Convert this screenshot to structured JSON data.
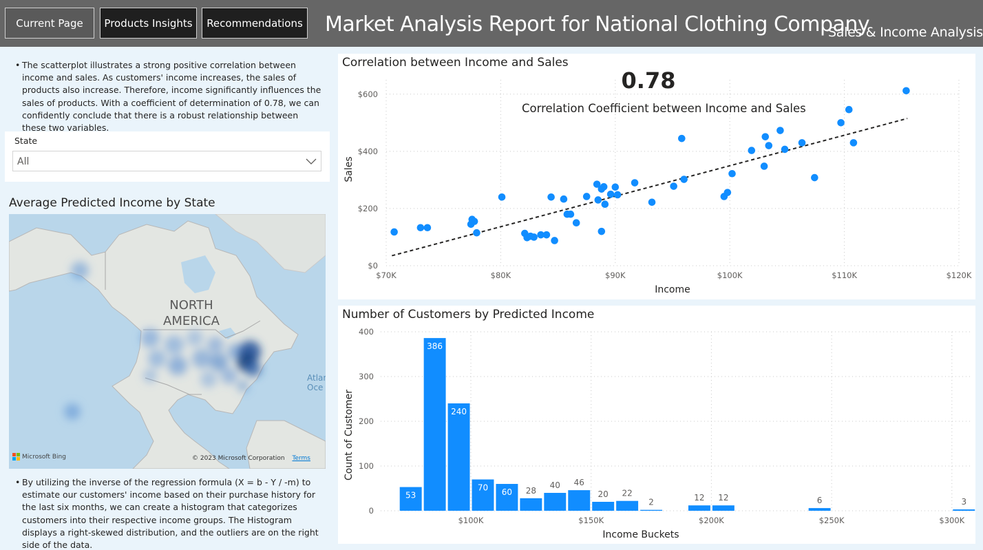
{
  "header": {
    "nav": [
      "Current Page",
      "Products Insights",
      "Recommendations"
    ],
    "title": "Market Analysis Report for National Clothing Company",
    "subtitle": "Sales & Income Analysis",
    "colors": {
      "bar": "#666666",
      "button": "#1f1f1f",
      "button_active": "#5a5a5a"
    }
  },
  "left": {
    "paragraph1": "The scatterplot illustrates a strong positive correlation between income and sales. As customers' income increases, the sales of products also increase. Therefore, income significantly influences the sales of products. With a coefficient of determination of 0.78, we can confidently conclude that there is a robust relationship between these two variables.",
    "slicer": {
      "label": "State",
      "value": "All",
      "icon": "chevron-down-icon"
    },
    "map": {
      "title": "Average Predicted Income by State",
      "label_continent": [
        "NORTH",
        "AMERICA"
      ],
      "label_ocean": [
        "Atlan",
        "Oce"
      ],
      "bing": "Microsoft Bing",
      "copyright": "© 2023 Microsoft Corporation",
      "terms": "Terms"
    },
    "paragraph2": "By utilizing the inverse of the regression formula (X = b - Y / -m) to estimate our customers' income based on their purchase history for the last six months, we can create a histogram that categorizes customers into their respective income groups. The Histogram displays a right-skewed distribution, and the outliers are on the right side of the data."
  },
  "kpi": {
    "value": "0.78",
    "label": "Correlation Coefficient between Income and Sales"
  },
  "chart_data": [
    {
      "type": "scatter",
      "title": "Correlation between Income and Sales",
      "xlabel": "Income",
      "ylabel": "Sales",
      "xlim": [
        70000,
        120000
      ],
      "ylim": [
        0,
        650
      ],
      "x_ticks": [
        70000,
        80000,
        90000,
        100000,
        110000,
        120000
      ],
      "x_tick_labels": [
        "$70K",
        "$80K",
        "$90K",
        "$100K",
        "$110K",
        "$120K"
      ],
      "y_ticks": [
        0,
        200,
        400,
        600
      ],
      "y_tick_labels": [
        "$0",
        "$200",
        "$400",
        "$600"
      ],
      "grid": true,
      "color": "#118dff",
      "trendline": {
        "style": "dashed",
        "x": [
          70500,
          115500
        ],
        "y": [
          35,
          515
        ]
      },
      "points": [
        [
          70700,
          118
        ],
        [
          73000,
          133
        ],
        [
          73600,
          133
        ],
        [
          77400,
          145
        ],
        [
          77500,
          162
        ],
        [
          77700,
          155
        ],
        [
          77900,
          115
        ],
        [
          80100,
          240
        ],
        [
          82100,
          113
        ],
        [
          82300,
          98
        ],
        [
          82600,
          103
        ],
        [
          82900,
          100
        ],
        [
          83500,
          108
        ],
        [
          84000,
          108
        ],
        [
          84400,
          240
        ],
        [
          84700,
          88
        ],
        [
          85500,
          233
        ],
        [
          85800,
          180
        ],
        [
          86100,
          180
        ],
        [
          86600,
          150
        ],
        [
          87500,
          242
        ],
        [
          88400,
          285
        ],
        [
          88500,
          230
        ],
        [
          88800,
          120
        ],
        [
          88800,
          268
        ],
        [
          89000,
          276
        ],
        [
          89100,
          215
        ],
        [
          89600,
          250
        ],
        [
          90000,
          275
        ],
        [
          90200,
          248
        ],
        [
          91700,
          290
        ],
        [
          93200,
          222
        ],
        [
          95100,
          278
        ],
        [
          95800,
          445
        ],
        [
          96000,
          302
        ],
        [
          99500,
          242
        ],
        [
          99800,
          256
        ],
        [
          100200,
          322
        ],
        [
          101900,
          403
        ],
        [
          103000,
          348
        ],
        [
          103100,
          451
        ],
        [
          103400,
          420
        ],
        [
          104400,
          473
        ],
        [
          104800,
          407
        ],
        [
          106300,
          430
        ],
        [
          107400,
          308
        ],
        [
          109700,
          500
        ],
        [
          110400,
          546
        ],
        [
          110800,
          430
        ],
        [
          115400,
          612
        ]
      ]
    },
    {
      "type": "bar",
      "title": "Number of Customers by Predicted Income",
      "xlabel": "Income Buckets",
      "ylabel": "Count of Customer",
      "ylim": [
        0,
        400
      ],
      "y_ticks": [
        0,
        100,
        200,
        300,
        400
      ],
      "xlim": [
        62500,
        307500
      ],
      "x_ticks": [
        100000,
        150000,
        200000,
        250000,
        300000
      ],
      "x_tick_labels": [
        "$100K",
        "$150K",
        "$200K",
        "$250K",
        "$300K"
      ],
      "grid": true,
      "color": "#118dff",
      "bucket_width": 10000,
      "bucket_starts": [
        70000,
        80000,
        90000,
        100000,
        110000,
        120000,
        130000,
        140000,
        150000,
        160000,
        170000,
        190000,
        200000,
        240000,
        300000
      ],
      "values": [
        53,
        386,
        240,
        70,
        60,
        28,
        40,
        46,
        20,
        22,
        2,
        12,
        12,
        6,
        3
      ]
    }
  ]
}
